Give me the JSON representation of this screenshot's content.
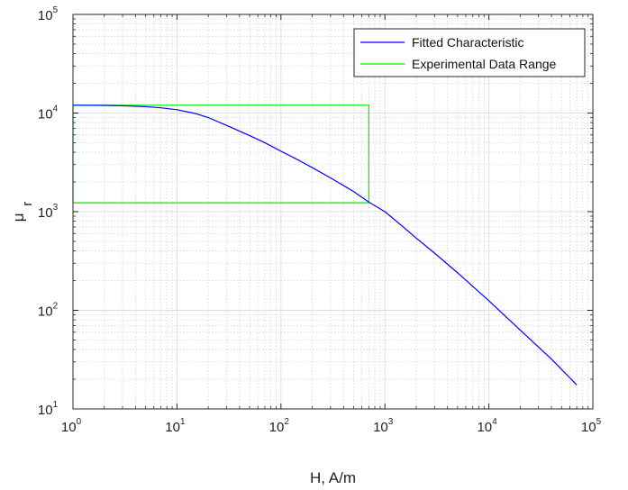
{
  "chart_data": {
    "type": "line",
    "xlabel": "H, A/m",
    "ylabel": {
      "mu": "μ",
      "sub": "r"
    },
    "x_scale": "log",
    "y_scale": "log",
    "xlim": [
      1,
      100000
    ],
    "ylim": [
      10,
      100000
    ],
    "grid": true,
    "minor_grid": true,
    "legend_position": "top-right",
    "x_ticks": [
      {
        "value": 1,
        "base": "10",
        "exp": "0"
      },
      {
        "value": 10,
        "base": "10",
        "exp": "1"
      },
      {
        "value": 100,
        "base": "10",
        "exp": "2"
      },
      {
        "value": 1000,
        "base": "10",
        "exp": "3"
      },
      {
        "value": 10000,
        "base": "10",
        "exp": "4"
      },
      {
        "value": 100000,
        "base": "10",
        "exp": "5"
      }
    ],
    "y_ticks": [
      {
        "value": 10,
        "base": "10",
        "exp": "1"
      },
      {
        "value": 100,
        "base": "10",
        "exp": "2"
      },
      {
        "value": 1000,
        "base": "10",
        "exp": "3"
      },
      {
        "value": 10000,
        "base": "10",
        "exp": "4"
      },
      {
        "value": 100000,
        "base": "10",
        "exp": "5"
      }
    ],
    "series": [
      {
        "name": "Fitted Characteristic",
        "color": "#0000ff",
        "x": [
          1,
          2,
          3,
          5,
          7,
          10,
          15,
          20,
          30,
          50,
          70,
          100,
          150,
          200,
          300,
          500,
          700,
          1000,
          1500,
          2000,
          3000,
          5000,
          7000,
          10000,
          20000,
          40000,
          70000
        ],
        "y": [
          12000,
          11950,
          11850,
          11600,
          11300,
          10800,
          9900,
          9000,
          7500,
          5900,
          5000,
          4100,
          3300,
          2800,
          2200,
          1600,
          1250,
          1000,
          700,
          540,
          380,
          240,
          175,
          125,
          63,
          32,
          17.5
        ]
      },
      {
        "name": "Experimental Data Range",
        "color": "#00ee00",
        "x": [
          1,
          700,
          700,
          1,
          1
        ],
        "y": [
          12000,
          12000,
          1230,
          1230,
          12000
        ]
      }
    ]
  },
  "style": {
    "background": "#ffffff",
    "axis_color": "#262626",
    "grid_color": "#dedede",
    "minor_grid_color": "#d4d4d4"
  }
}
